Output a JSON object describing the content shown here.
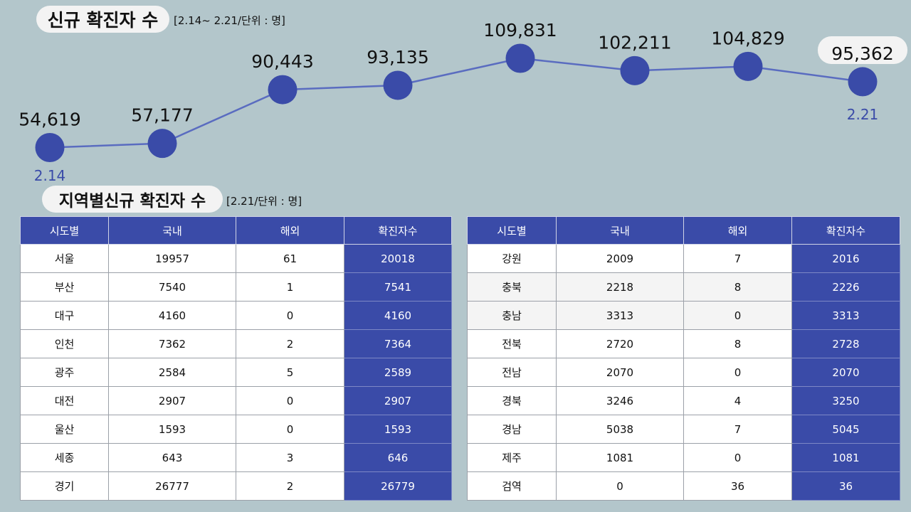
{
  "header": {
    "title": "신규 확진자 수",
    "note": "[2.14~ 2.21/단위 : 명]"
  },
  "chart_data": {
    "type": "line",
    "title": "신규 확진자 수",
    "subtitle": "[2.14~ 2.21/단위 : 명]",
    "values": [
      54619,
      57177,
      90443,
      93135,
      109831,
      102211,
      104829,
      95362
    ],
    "value_labels": [
      "54,619",
      "57,177",
      "90,443",
      "93,135",
      "109,831",
      "102,211",
      "104,829",
      "95,362"
    ],
    "start_label": "2.14",
    "end_label": "2.21",
    "color": "#3a4ba8"
  },
  "regional": {
    "title": "지역별신규 확진자 수",
    "note": "[2.21/단위 : 명]",
    "headers": [
      "시도별",
      "국내",
      "해외",
      "확진자수"
    ],
    "left_rows": [
      [
        "서울",
        "19957",
        "61",
        "20018"
      ],
      [
        "부산",
        "7540",
        "1",
        "7541"
      ],
      [
        "대구",
        "4160",
        "0",
        "4160"
      ],
      [
        "인천",
        "7362",
        "2",
        "7364"
      ],
      [
        "광주",
        "2584",
        "5",
        "2589"
      ],
      [
        "대전",
        "2907",
        "0",
        "2907"
      ],
      [
        "울산",
        "1593",
        "0",
        "1593"
      ],
      [
        "세종",
        "643",
        "3",
        "646"
      ],
      [
        "경기",
        "26777",
        "2",
        "26779"
      ]
    ],
    "right_rows": [
      [
        "강원",
        "2009",
        "7",
        "2016"
      ],
      [
        "충북",
        "2218",
        "8",
        "2226"
      ],
      [
        "충남",
        "3313",
        "0",
        "3313"
      ],
      [
        "전북",
        "2720",
        "8",
        "2728"
      ],
      [
        "전남",
        "2070",
        "0",
        "2070"
      ],
      [
        "경북",
        "3246",
        "4",
        "3250"
      ],
      [
        "경남",
        "5038",
        "7",
        "5045"
      ],
      [
        "제주",
        "1081",
        "0",
        "1081"
      ],
      [
        "검역",
        "0",
        "36",
        "36"
      ]
    ]
  },
  "colors": {
    "accent": "#3a4ba8",
    "background": "#b3c6cb"
  }
}
